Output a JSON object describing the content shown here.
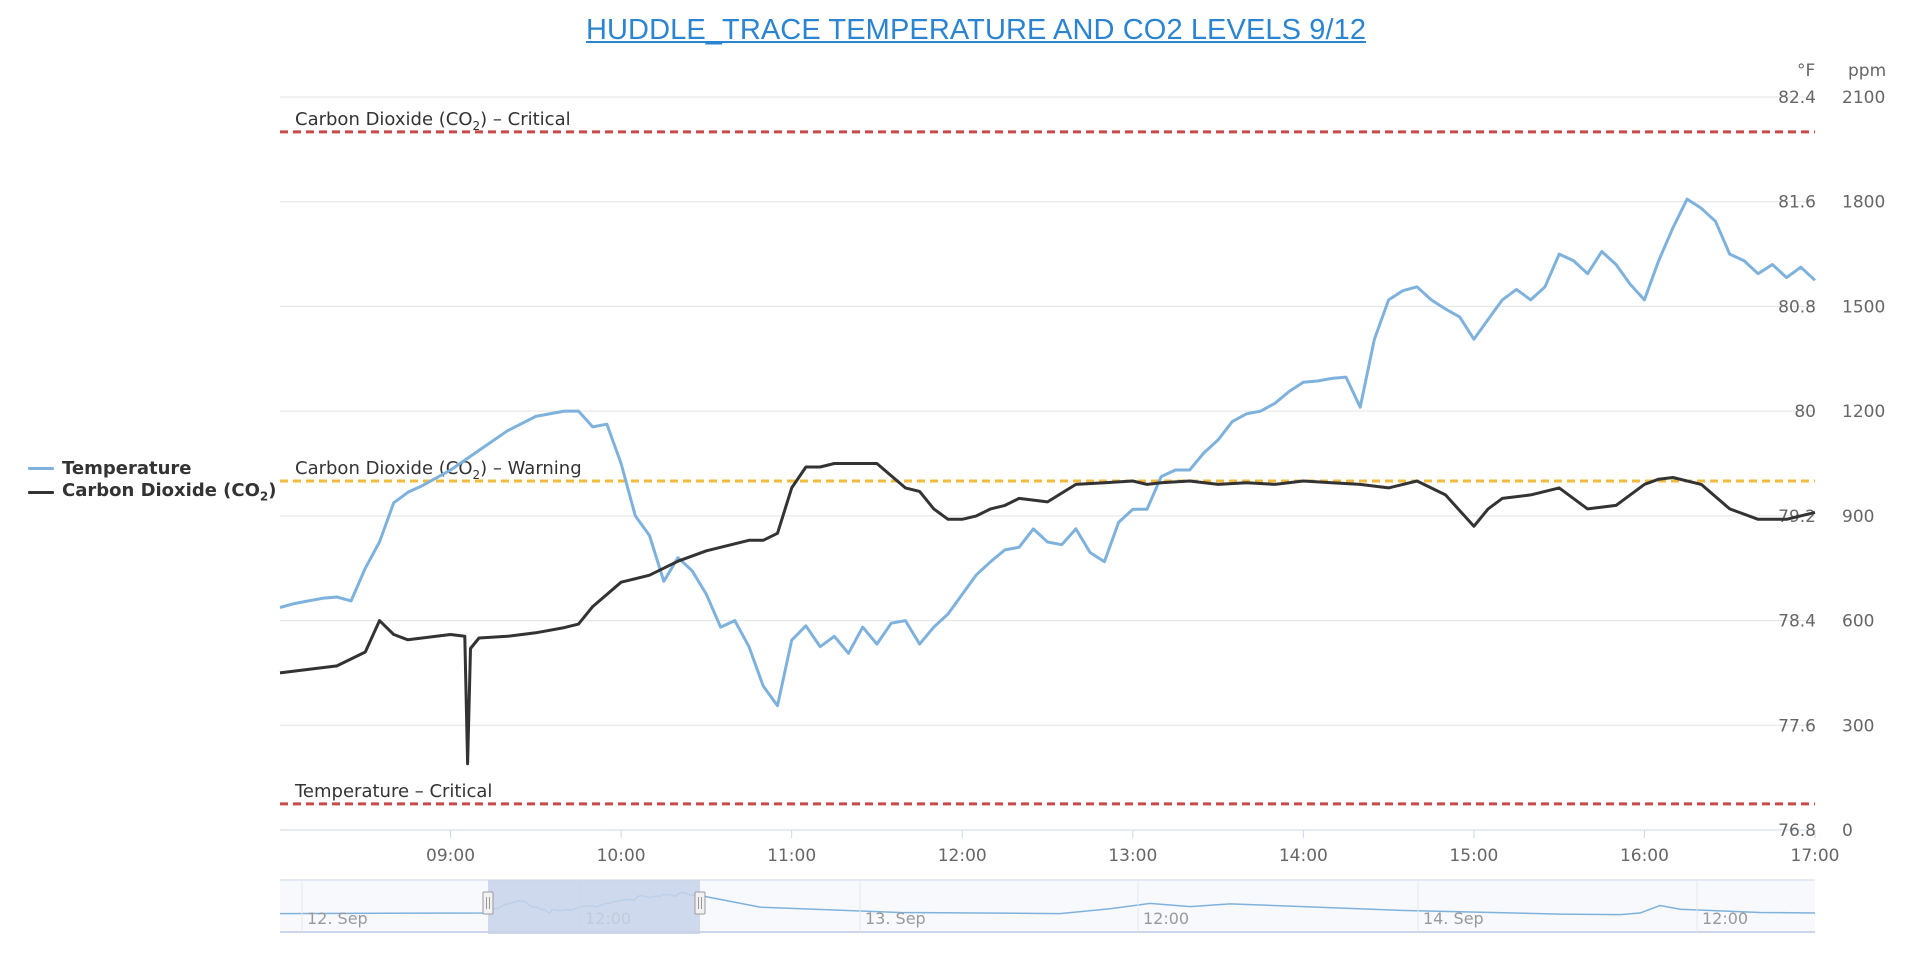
{
  "title": "HUDDLE_TRACE TEMPERATURE AND CO2 LEVELS 9/12",
  "colors": {
    "temperature": "#7eb2dd",
    "co2": "#333333",
    "critical": "#c94a4a",
    "warning": "#f2bb3f",
    "grid": "#e3e3e3",
    "navigator_fill": "#c8d3ea"
  },
  "legend": [
    {
      "label": "Temperature",
      "subscript": "",
      "suffix": ""
    },
    {
      "label": "Carbon Dioxide (CO",
      "subscript": "2",
      "suffix": ")"
    }
  ],
  "chart_data": {
    "type": "line",
    "title": "HUDDLE_TRACE TEMPERATURE AND CO2 LEVELS 9/12",
    "x_axis": {
      "range": [
        "08:00",
        "17:00"
      ],
      "tick_labels": [
        "09:00",
        "10:00",
        "11:00",
        "12:00",
        "13:00",
        "14:00",
        "15:00",
        "16:00",
        "17:00"
      ]
    },
    "y_axes": [
      {
        "unit": "°F",
        "range": [
          76.8,
          82.4
        ],
        "tick_labels": [
          "76.8",
          "77.6",
          "78.4",
          "79.2",
          "80",
          "80.8",
          "81.6",
          "82.4"
        ]
      },
      {
        "unit": "ppm",
        "range": [
          0,
          2100
        ],
        "tick_labels": [
          "0",
          "300",
          "600",
          "900",
          "1200",
          "1500",
          "1800",
          "2100"
        ]
      }
    ],
    "plot_lines": [
      {
        "label": "Carbon Dioxide (CO",
        "subscript": "2",
        "suffix": ") – Critical",
        "axis": "ppm",
        "value": 2000,
        "color": "critical"
      },
      {
        "label": "Carbon Dioxide (CO",
        "subscript": "2",
        "suffix": ") – Warning",
        "axis": "ppm",
        "value": 1000,
        "color": "warning"
      },
      {
        "label": "Temperature – Critical",
        "subscript": "",
        "suffix": "",
        "axis": "°F",
        "value": 77.0,
        "color": "critical"
      }
    ],
    "series": [
      {
        "name": "Temperature",
        "axis": "°F",
        "x": [
          "08:00",
          "08:05",
          "08:10",
          "08:15",
          "08:20",
          "08:25",
          "08:30",
          "08:35",
          "08:40",
          "08:45",
          "08:50",
          "09:00",
          "09:10",
          "09:20",
          "09:30",
          "09:40",
          "09:45",
          "09:50",
          "09:55",
          "10:00",
          "10:05",
          "10:10",
          "10:15",
          "10:20",
          "10:25",
          "10:30",
          "10:35",
          "10:40",
          "10:45",
          "10:50",
          "10:55",
          "11:00",
          "11:05",
          "11:10",
          "11:15",
          "11:20",
          "11:25",
          "11:30",
          "11:35",
          "11:40",
          "11:45",
          "11:50",
          "11:55",
          "12:00",
          "12:05",
          "12:10",
          "12:15",
          "12:20",
          "12:25",
          "12:30",
          "12:35",
          "12:40",
          "12:45",
          "12:50",
          "12:55",
          "13:00",
          "13:05",
          "13:10",
          "13:15",
          "13:20",
          "13:25",
          "13:30",
          "13:35",
          "13:40",
          "13:45",
          "13:50",
          "13:55",
          "14:00",
          "14:05",
          "14:10",
          "14:15",
          "14:20",
          "14:25",
          "14:30",
          "14:35",
          "14:40",
          "14:45",
          "14:50",
          "14:55",
          "15:00",
          "15:05",
          "15:10",
          "15:15",
          "15:20",
          "15:25",
          "15:30",
          "15:35",
          "15:40",
          "15:45",
          "15:50",
          "15:55",
          "16:00",
          "16:05",
          "16:10",
          "16:15",
          "16:20",
          "16:25",
          "16:30",
          "16:35",
          "16:40",
          "16:45",
          "16:50",
          "16:55",
          "17:00"
        ],
        "values": [
          78.5,
          78.53,
          78.55,
          78.57,
          78.58,
          78.55,
          78.8,
          79.0,
          79.3,
          79.38,
          79.43,
          79.55,
          79.7,
          79.85,
          79.96,
          80.0,
          80.0,
          79.88,
          79.9,
          79.6,
          79.2,
          79.05,
          78.7,
          78.88,
          78.78,
          78.6,
          78.35,
          78.4,
          78.2,
          77.9,
          77.75,
          78.25,
          78.36,
          78.2,
          78.28,
          78.15,
          78.35,
          78.22,
          78.38,
          78.4,
          78.22,
          78.35,
          78.45,
          78.6,
          78.75,
          78.85,
          78.94,
          78.96,
          79.1,
          79.0,
          78.98,
          79.1,
          78.92,
          78.85,
          79.15,
          79.25,
          79.25,
          79.5,
          79.55,
          79.55,
          79.68,
          79.78,
          79.92,
          79.98,
          80.0,
          80.06,
          80.15,
          80.22,
          80.23,
          80.25,
          80.26,
          80.03,
          80.55,
          80.85,
          80.92,
          80.95,
          80.85,
          80.78,
          80.72,
          80.55,
          80.7,
          80.85,
          80.93,
          80.85,
          80.95,
          81.2,
          81.15,
          81.05,
          81.22,
          81.12,
          80.97,
          80.85,
          81.15,
          81.4,
          81.62,
          81.55,
          81.45,
          81.2,
          81.15,
          81.05,
          81.12,
          81.02,
          81.1,
          81.0
        ]
      },
      {
        "name": "Carbon Dioxide (CO2)",
        "axis": "ppm",
        "x": [
          "08:00",
          "08:10",
          "08:20",
          "08:30",
          "08:35",
          "08:40",
          "08:45",
          "08:50",
          "08:55",
          "09:00",
          "09:05",
          "09:06",
          "09:07",
          "09:10",
          "09:20",
          "09:30",
          "09:40",
          "09:45",
          "09:50",
          "10:00",
          "10:10",
          "10:20",
          "10:30",
          "10:40",
          "10:45",
          "10:50",
          "10:55",
          "11:00",
          "11:05",
          "11:10",
          "11:15",
          "11:20",
          "11:30",
          "11:40",
          "11:45",
          "11:50",
          "11:55",
          "12:00",
          "12:05",
          "12:10",
          "12:15",
          "12:20",
          "12:30",
          "12:40",
          "12:50",
          "13:00",
          "13:05",
          "13:10",
          "13:20",
          "13:30",
          "13:40",
          "13:50",
          "14:00",
          "14:10",
          "14:20",
          "14:30",
          "14:40",
          "14:50",
          "15:00",
          "15:05",
          "15:10",
          "15:20",
          "15:30",
          "15:40",
          "15:50",
          "16:00",
          "16:05",
          "16:10",
          "16:20",
          "16:30",
          "16:40",
          "16:50",
          "17:00"
        ],
        "values": [
          450,
          460,
          470,
          510,
          600,
          560,
          545,
          550,
          555,
          560,
          555,
          190,
          520,
          550,
          555,
          565,
          580,
          590,
          640,
          710,
          730,
          770,
          800,
          820,
          830,
          830,
          850,
          980,
          1040,
          1040,
          1050,
          1050,
          1050,
          980,
          970,
          920,
          890,
          890,
          900,
          920,
          930,
          950,
          940,
          990,
          995,
          1000,
          990,
          995,
          1000,
          990,
          995,
          990,
          1000,
          995,
          990,
          980,
          1000,
          960,
          870,
          920,
          950,
          960,
          980,
          920,
          930,
          990,
          1005,
          1010,
          990,
          920,
          890,
          890,
          910
        ]
      }
    ],
    "navigator": {
      "labels": [
        "12. Sep",
        "12:00",
        "13. Sep",
        "12:00",
        "14. Sep",
        "12:00"
      ]
    }
  }
}
